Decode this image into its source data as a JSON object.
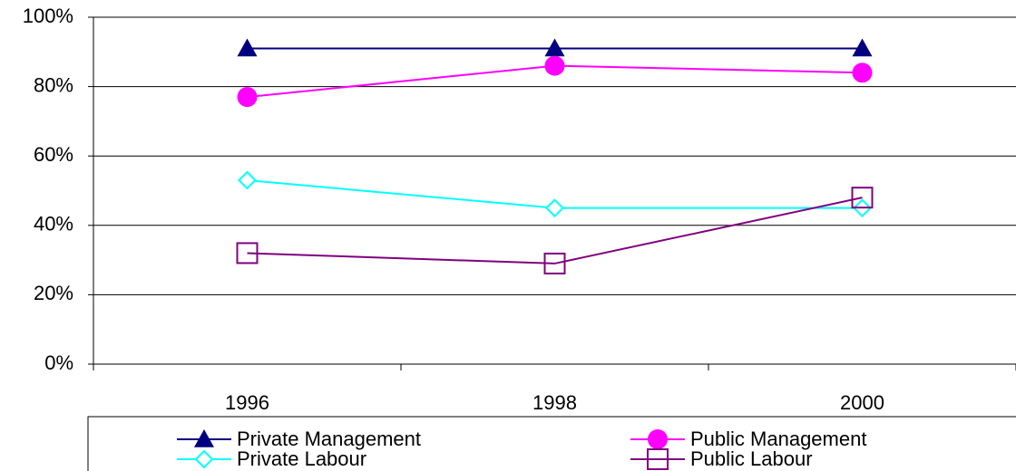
{
  "chart_data": {
    "type": "line",
    "categories": [
      "1996",
      "1998",
      "2000"
    ],
    "series": [
      {
        "name": "Private Management",
        "color": "#000080",
        "marker": "triangle",
        "values": [
          91,
          91,
          91
        ]
      },
      {
        "name": "Public Management",
        "color": "#ff00ff",
        "marker": "circle",
        "values": [
          77,
          86,
          84
        ]
      },
      {
        "name": "Private Labour",
        "color": "#00ffff",
        "marker": "diamond",
        "values": [
          53,
          45,
          45
        ]
      },
      {
        "name": "Public Labour",
        "color": "#800080",
        "marker": "square",
        "values": [
          32,
          29,
          48
        ]
      }
    ],
    "ylim": [
      0,
      100
    ],
    "yticks": [
      {
        "value": 0,
        "label": "0%"
      },
      {
        "value": 20,
        "label": "20%"
      },
      {
        "value": 40,
        "label": "40%"
      },
      {
        "value": 60,
        "label": "60%"
      },
      {
        "value": 80,
        "label": "80%"
      },
      {
        "value": 100,
        "label": "100%"
      }
    ],
    "grid": true,
    "legend": "bottom"
  }
}
